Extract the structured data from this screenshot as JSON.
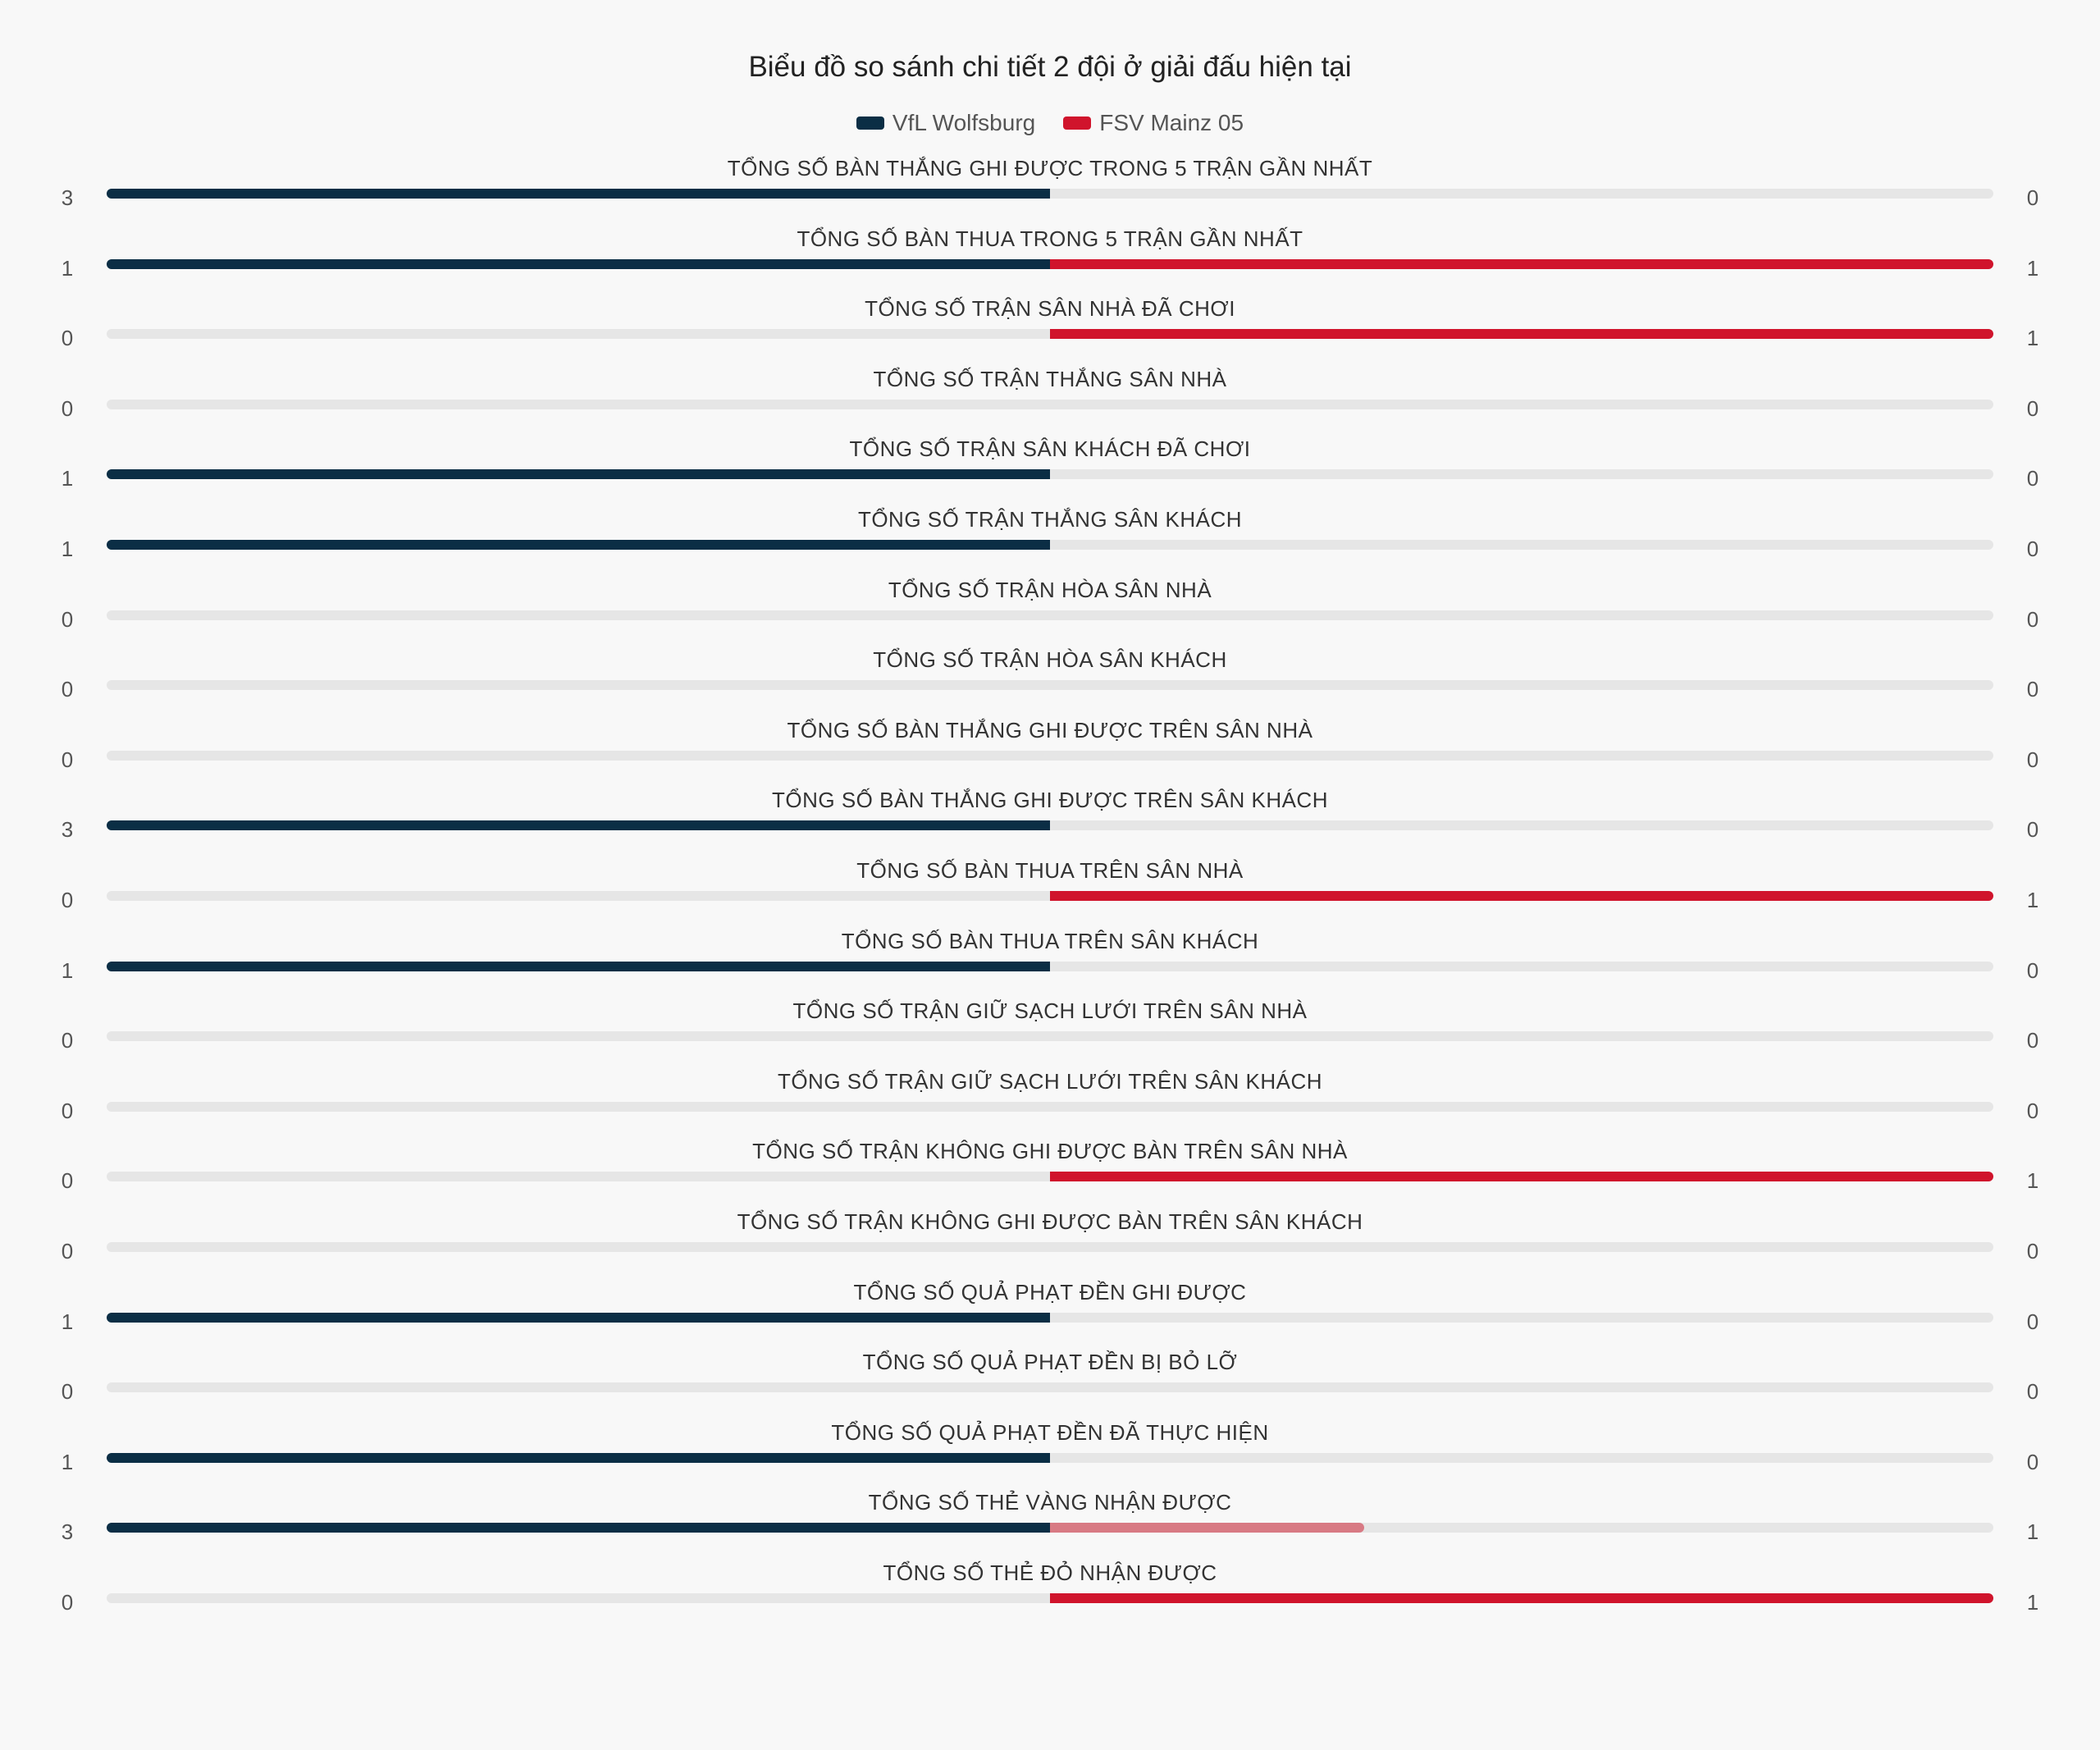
{
  "chart_data": {
    "type": "bar",
    "orientation": "diverging-horizontal",
    "title": "Biểu đồ so sánh chi tiết 2 đội ở giải đấu hiện tại",
    "legend": "top-center",
    "series": [
      {
        "name": "VfL Wolfsburg",
        "color": "#0b2e45",
        "values": [
          3,
          1,
          0,
          0,
          1,
          1,
          0,
          0,
          0,
          3,
          0,
          1,
          0,
          0,
          0,
          0,
          1,
          0,
          1,
          3,
          0
        ]
      },
      {
        "name": "FSV Mainz 05",
        "color": "#d0142c",
        "values": [
          0,
          1,
          1,
          0,
          0,
          0,
          0,
          0,
          0,
          0,
          1,
          0,
          0,
          0,
          1,
          0,
          0,
          0,
          0,
          1,
          1
        ]
      }
    ],
    "categories": [
      "TỔNG SỐ BÀN THẮNG GHI ĐƯỢC TRONG 5 TRẬN GẦN NHẤT",
      "TỔNG SỐ BÀN THUA TRONG 5 TRẬN GẦN NHẤT",
      "TỔNG SỐ TRẬN SÂN NHÀ ĐÃ CHƠI",
      "TỔNG SỐ TRẬN THẮNG SÂN NHÀ",
      "TỔNG SỐ TRẬN SÂN KHÁCH ĐÃ CHƠI",
      "TỔNG SỐ TRẬN THẮNG SÂN KHÁCH",
      "TỔNG SỐ TRẬN HÒA SÂN NHÀ",
      "TỔNG SỐ TRẬN HÒA SÂN KHÁCH",
      "TỔNG SỐ BÀN THẮNG GHI ĐƯỢC TRÊN SÂN NHÀ",
      "TỔNG SỐ BÀN THẮNG GHI ĐƯỢC TRÊN SÂN KHÁCH",
      "TỔNG SỐ BÀN THUA TRÊN SÂN NHÀ",
      "TỔNG SỐ BÀN THUA TRÊN SÂN KHÁCH",
      "TỔNG SỐ TRẬN GIỮ SẠCH LƯỚI TRÊN SÂN NHÀ",
      "TỔNG SỐ TRẬN GIỮ SẠCH LƯỚI TRÊN SÂN KHÁCH",
      "TỔNG SỐ TRẬN KHÔNG GHI ĐƯỢC BÀN TRÊN SÂN NHÀ",
      "TỔNG SỐ TRẬN KHÔNG GHI ĐƯỢC BÀN TRÊN SÂN KHÁCH",
      "TỔNG SỐ QUẢ PHẠT ĐỀN GHI ĐƯỢC",
      "TỔNG SỐ QUẢ PHẠT ĐỀN BỊ BỎ LỠ",
      "TỔNG SỐ QUẢ PHẠT ĐỀN ĐÃ THỰC HIỆN",
      "TỔNG SỐ THẺ VÀNG NHẬN ĐƯỢC",
      "TỔNG SỐ THẺ ĐỎ NHẬN ĐƯỢC"
    ],
    "track_color": "#e6e6e6",
    "secondary_right_color": "#d87a84"
  }
}
